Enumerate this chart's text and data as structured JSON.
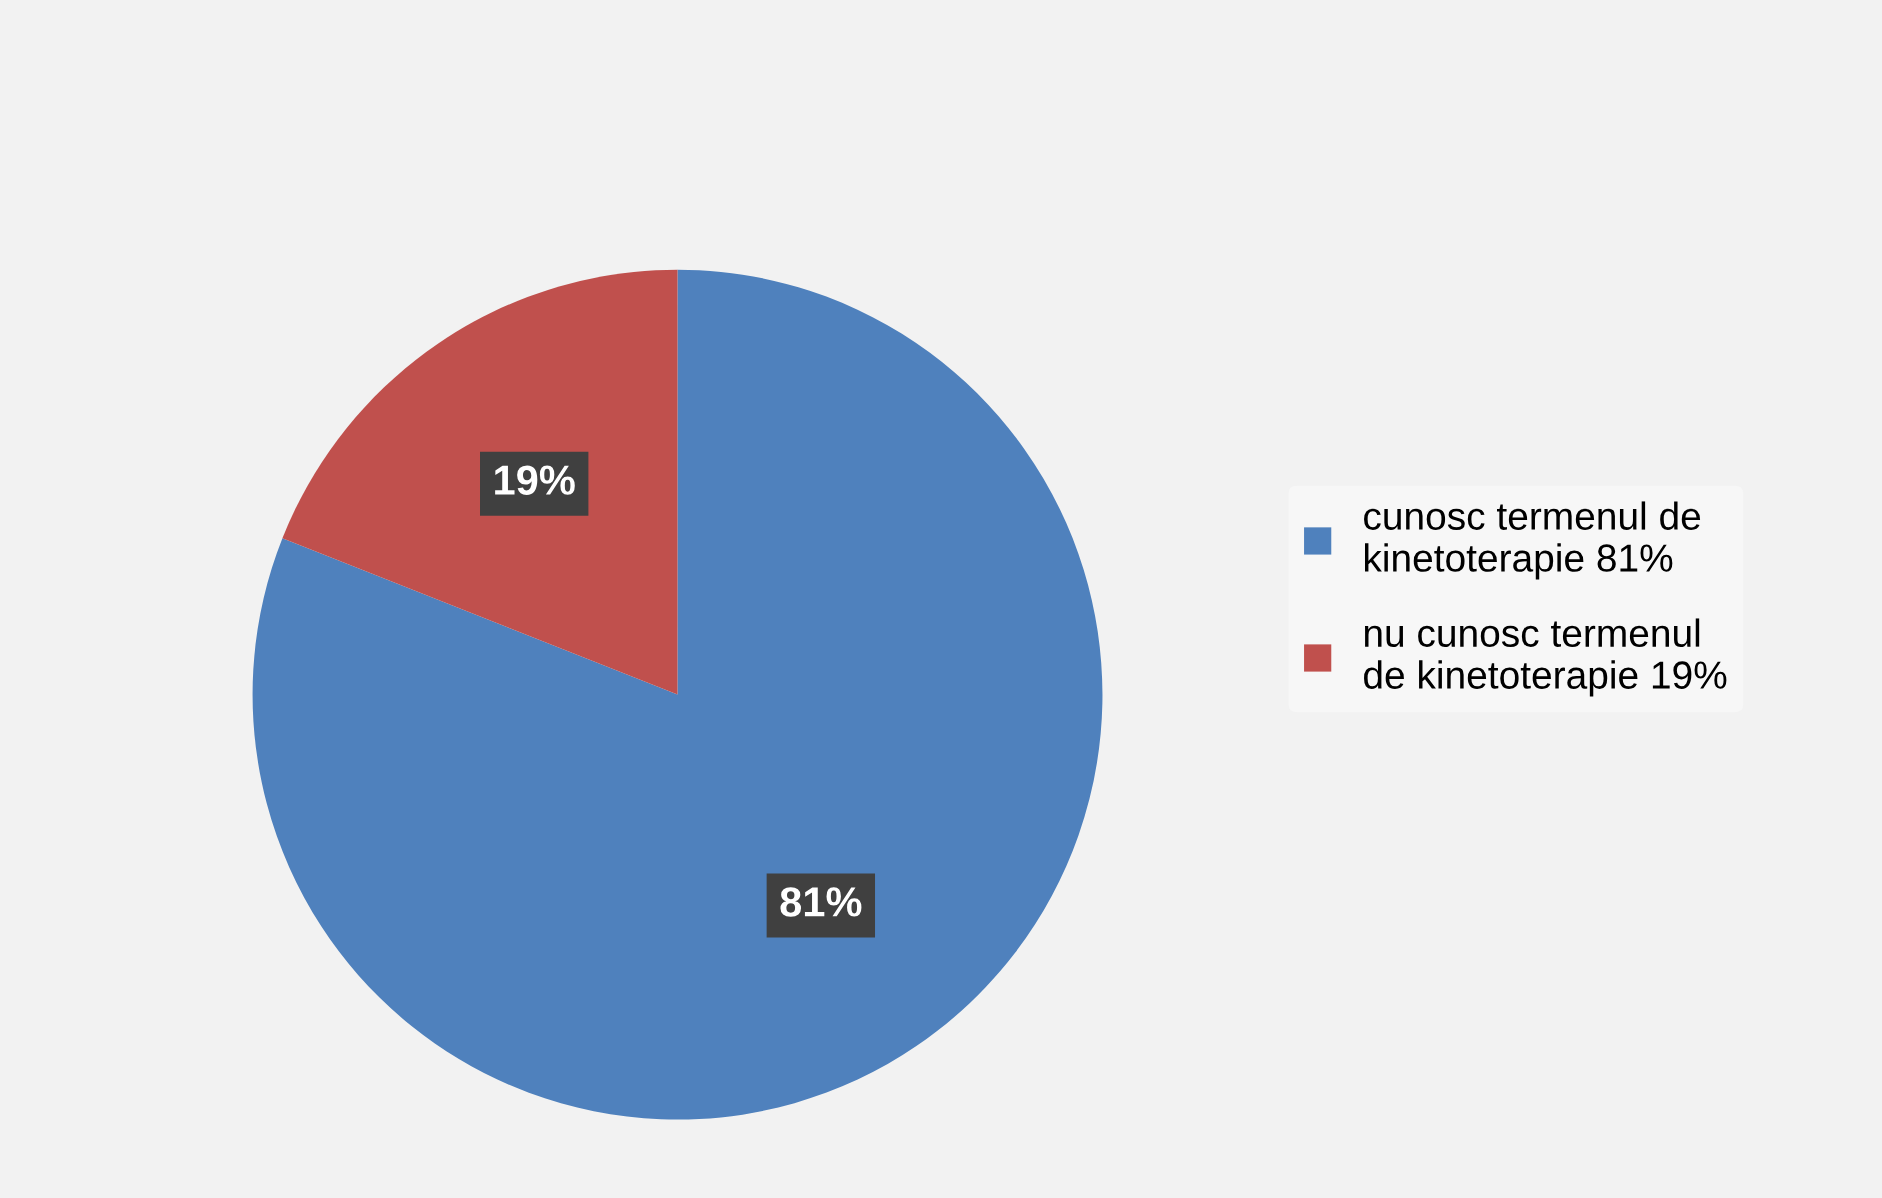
{
  "chart_data": {
    "type": "pie",
    "categories": [
      "cunosc termenul de kinetoterapie 81%",
      "nu cunosc termenul de kinetoterapie 19%"
    ],
    "values": [
      81,
      19
    ],
    "colors": [
      "#4f81bd",
      "#c0504d"
    ],
    "value_labels": [
      "81%",
      "19%"
    ],
    "legend": "right"
  }
}
